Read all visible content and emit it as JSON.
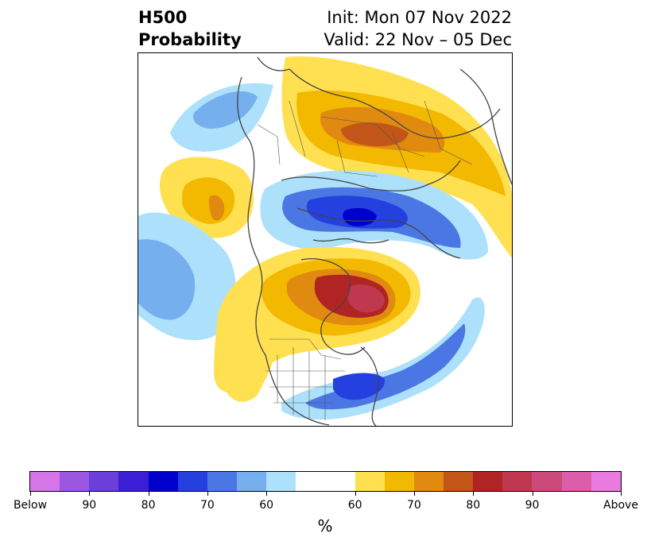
{
  "title": {
    "line1_left": "H500",
    "line2_left": "Probability",
    "line1_right": "Init: Mon 07 Nov 2022",
    "line2_right": "Valid: 22 Nov – 05 Dec"
  },
  "colorbar": {
    "unit": "%",
    "segments": [
      {
        "color": "#d575e8"
      },
      {
        "color": "#9b57e0"
      },
      {
        "color": "#6a3fdc"
      },
      {
        "color": "#3b1fd6"
      },
      {
        "color": "#0000cc"
      },
      {
        "color": "#2440de"
      },
      {
        "color": "#4a77e4"
      },
      {
        "color": "#75afee"
      },
      {
        "color": "#ade0fa"
      },
      {
        "color": "#ffffff"
      },
      {
        "color": "#ffe050"
      },
      {
        "color": "#f3b800"
      },
      {
        "color": "#e08a10"
      },
      {
        "color": "#c25618"
      },
      {
        "color": "#b02424"
      },
      {
        "color": "#c0384f"
      },
      {
        "color": "#cc4b7b"
      },
      {
        "color": "#dc5ea8"
      },
      {
        "color": "#e87ae0"
      }
    ],
    "tick_labels": [
      "Below",
      "90",
      "80",
      "70",
      "60",
      "60",
      "70",
      "80",
      "90",
      "Above"
    ]
  },
  "map": {
    "colors": {
      "blue_light": "#ade0fa",
      "blue_med": "#75afee",
      "blue_mid": "#4a77e4",
      "blue_strong": "#2440de",
      "blue_deep": "#0000cc",
      "yellow": "#ffe050",
      "gold": "#f3b800",
      "orange": "#e08a10",
      "rust": "#c25618",
      "red": "#b02424",
      "crimson": "#c0384f",
      "coast": "#444444"
    }
  }
}
